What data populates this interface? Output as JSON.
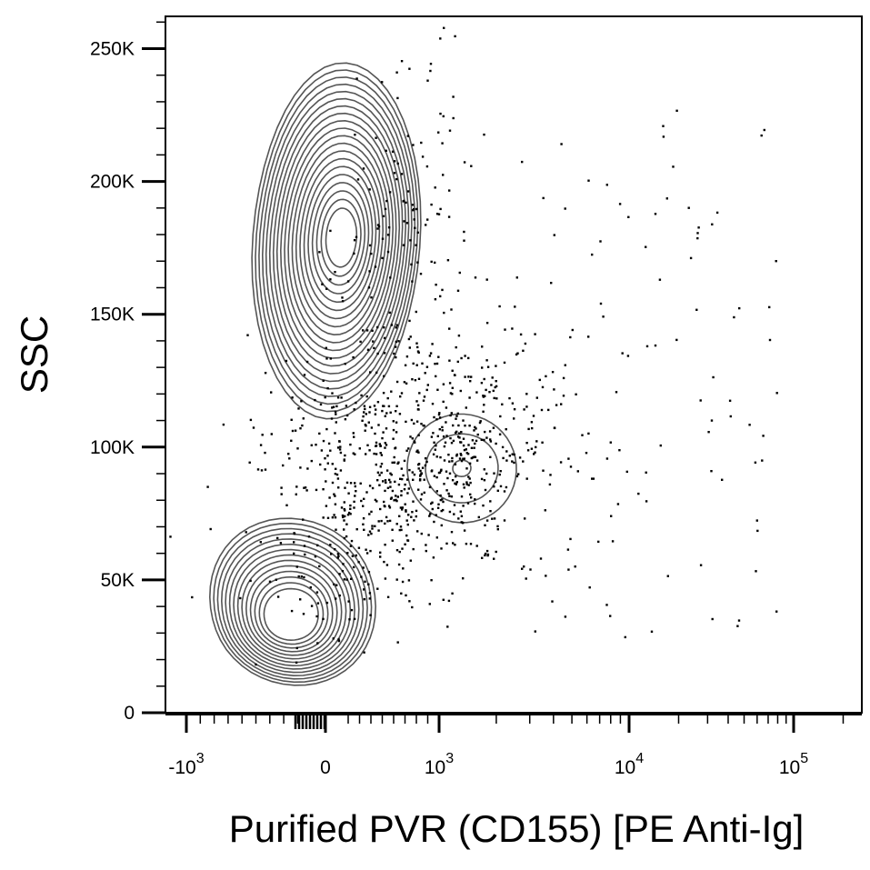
{
  "chart_data": {
    "type": "scatter",
    "subtype": "flow-cytometry contour plot with outlier dots",
    "xlabel": "Purified PVR (CD155)  [PE Anti-Ig]",
    "ylabel": "SSC",
    "x_scale": "biexponential",
    "x_ticks": [
      {
        "value": -1000,
        "base": "-10",
        "exp": "3"
      },
      {
        "value": 0,
        "base": "0",
        "exp": ""
      },
      {
        "value": 1000,
        "base": "10",
        "exp": "3"
      },
      {
        "value": 10000,
        "base": "10",
        "exp": "4"
      },
      {
        "value": 100000,
        "base": "10",
        "exp": "5"
      }
    ],
    "y_ticks": [
      {
        "value": 0,
        "label": "0"
      },
      {
        "value": 50000,
        "label": "50K"
      },
      {
        "value": 100000,
        "label": "100K"
      },
      {
        "value": 150000,
        "label": "150K"
      },
      {
        "value": 200000,
        "label": "200K"
      },
      {
        "value": 250000,
        "label": "250K"
      }
    ],
    "ylim": [
      0,
      262144
    ],
    "grid": false,
    "populations": [
      {
        "center_x": 0,
        "center_y": 176000,
        "levels": 20
      },
      {
        "center_x": 1150,
        "center_y": 92000,
        "levels": 3
      },
      {
        "center_x": -300,
        "center_y": 34000,
        "levels": 14
      }
    ]
  }
}
